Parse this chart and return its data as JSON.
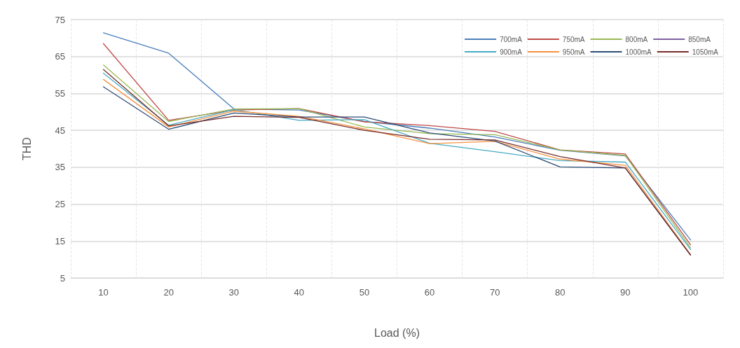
{
  "chart_data": {
    "type": "line",
    "xlabel": "Load (%)",
    "ylabel": "THD",
    "categories": [
      "10",
      "20",
      "30",
      "40",
      "50",
      "60",
      "70",
      "80",
      "90",
      "100"
    ],
    "ylim": [
      5,
      75
    ],
    "yticks": [
      5,
      15,
      25,
      35,
      45,
      55,
      65,
      75
    ],
    "grid": true,
    "legend": "top right",
    "marker": "none",
    "line_style": "solid",
    "series": [
      {
        "name": "700mA",
        "color": "#4a7ebb",
        "values": [
          71.4,
          65.9,
          50.8,
          50.5,
          47.4,
          45.6,
          43.2,
          39.6,
          38.1,
          15.3
        ]
      },
      {
        "name": "750mA",
        "color": "#be4b48",
        "values": [
          68.5,
          47.7,
          50.5,
          50.9,
          47.3,
          46.3,
          44.7,
          39.7,
          38.6,
          14.0
        ]
      },
      {
        "name": "800mA",
        "color": "#98b954",
        "values": [
          62.7,
          47.4,
          50.8,
          50.9,
          45.9,
          44.1,
          43.8,
          39.7,
          38.2,
          13.2
        ]
      },
      {
        "name": "850mA",
        "color": "#7d60a0",
        "values": [
          null,
          null,
          null,
          null,
          null,
          null,
          null,
          null,
          null,
          null
        ]
      },
      {
        "name": "900mA",
        "color": "#46aac5",
        "values": [
          60.5,
          46.4,
          50.6,
          47.7,
          47.9,
          41.5,
          39.2,
          36.8,
          36.4,
          12.7
        ]
      },
      {
        "name": "950mA",
        "color": "#f69240",
        "values": [
          58.8,
          45.9,
          50.2,
          48.8,
          45.4,
          41.4,
          42.0,
          37.2,
          35.5,
          11.4
        ]
      },
      {
        "name": "1000mA",
        "color": "#2c4d75",
        "values": [
          56.8,
          45.3,
          49.7,
          48.6,
          48.6,
          44.3,
          42.1,
          35.1,
          34.8,
          11.2
        ]
      },
      {
        "name": "1050mA",
        "color": "#772c2a",
        "values": [
          61.5,
          46.2,
          48.8,
          48.5,
          45.0,
          42.6,
          42.4,
          37.9,
          34.8,
          11.2
        ]
      }
    ]
  }
}
